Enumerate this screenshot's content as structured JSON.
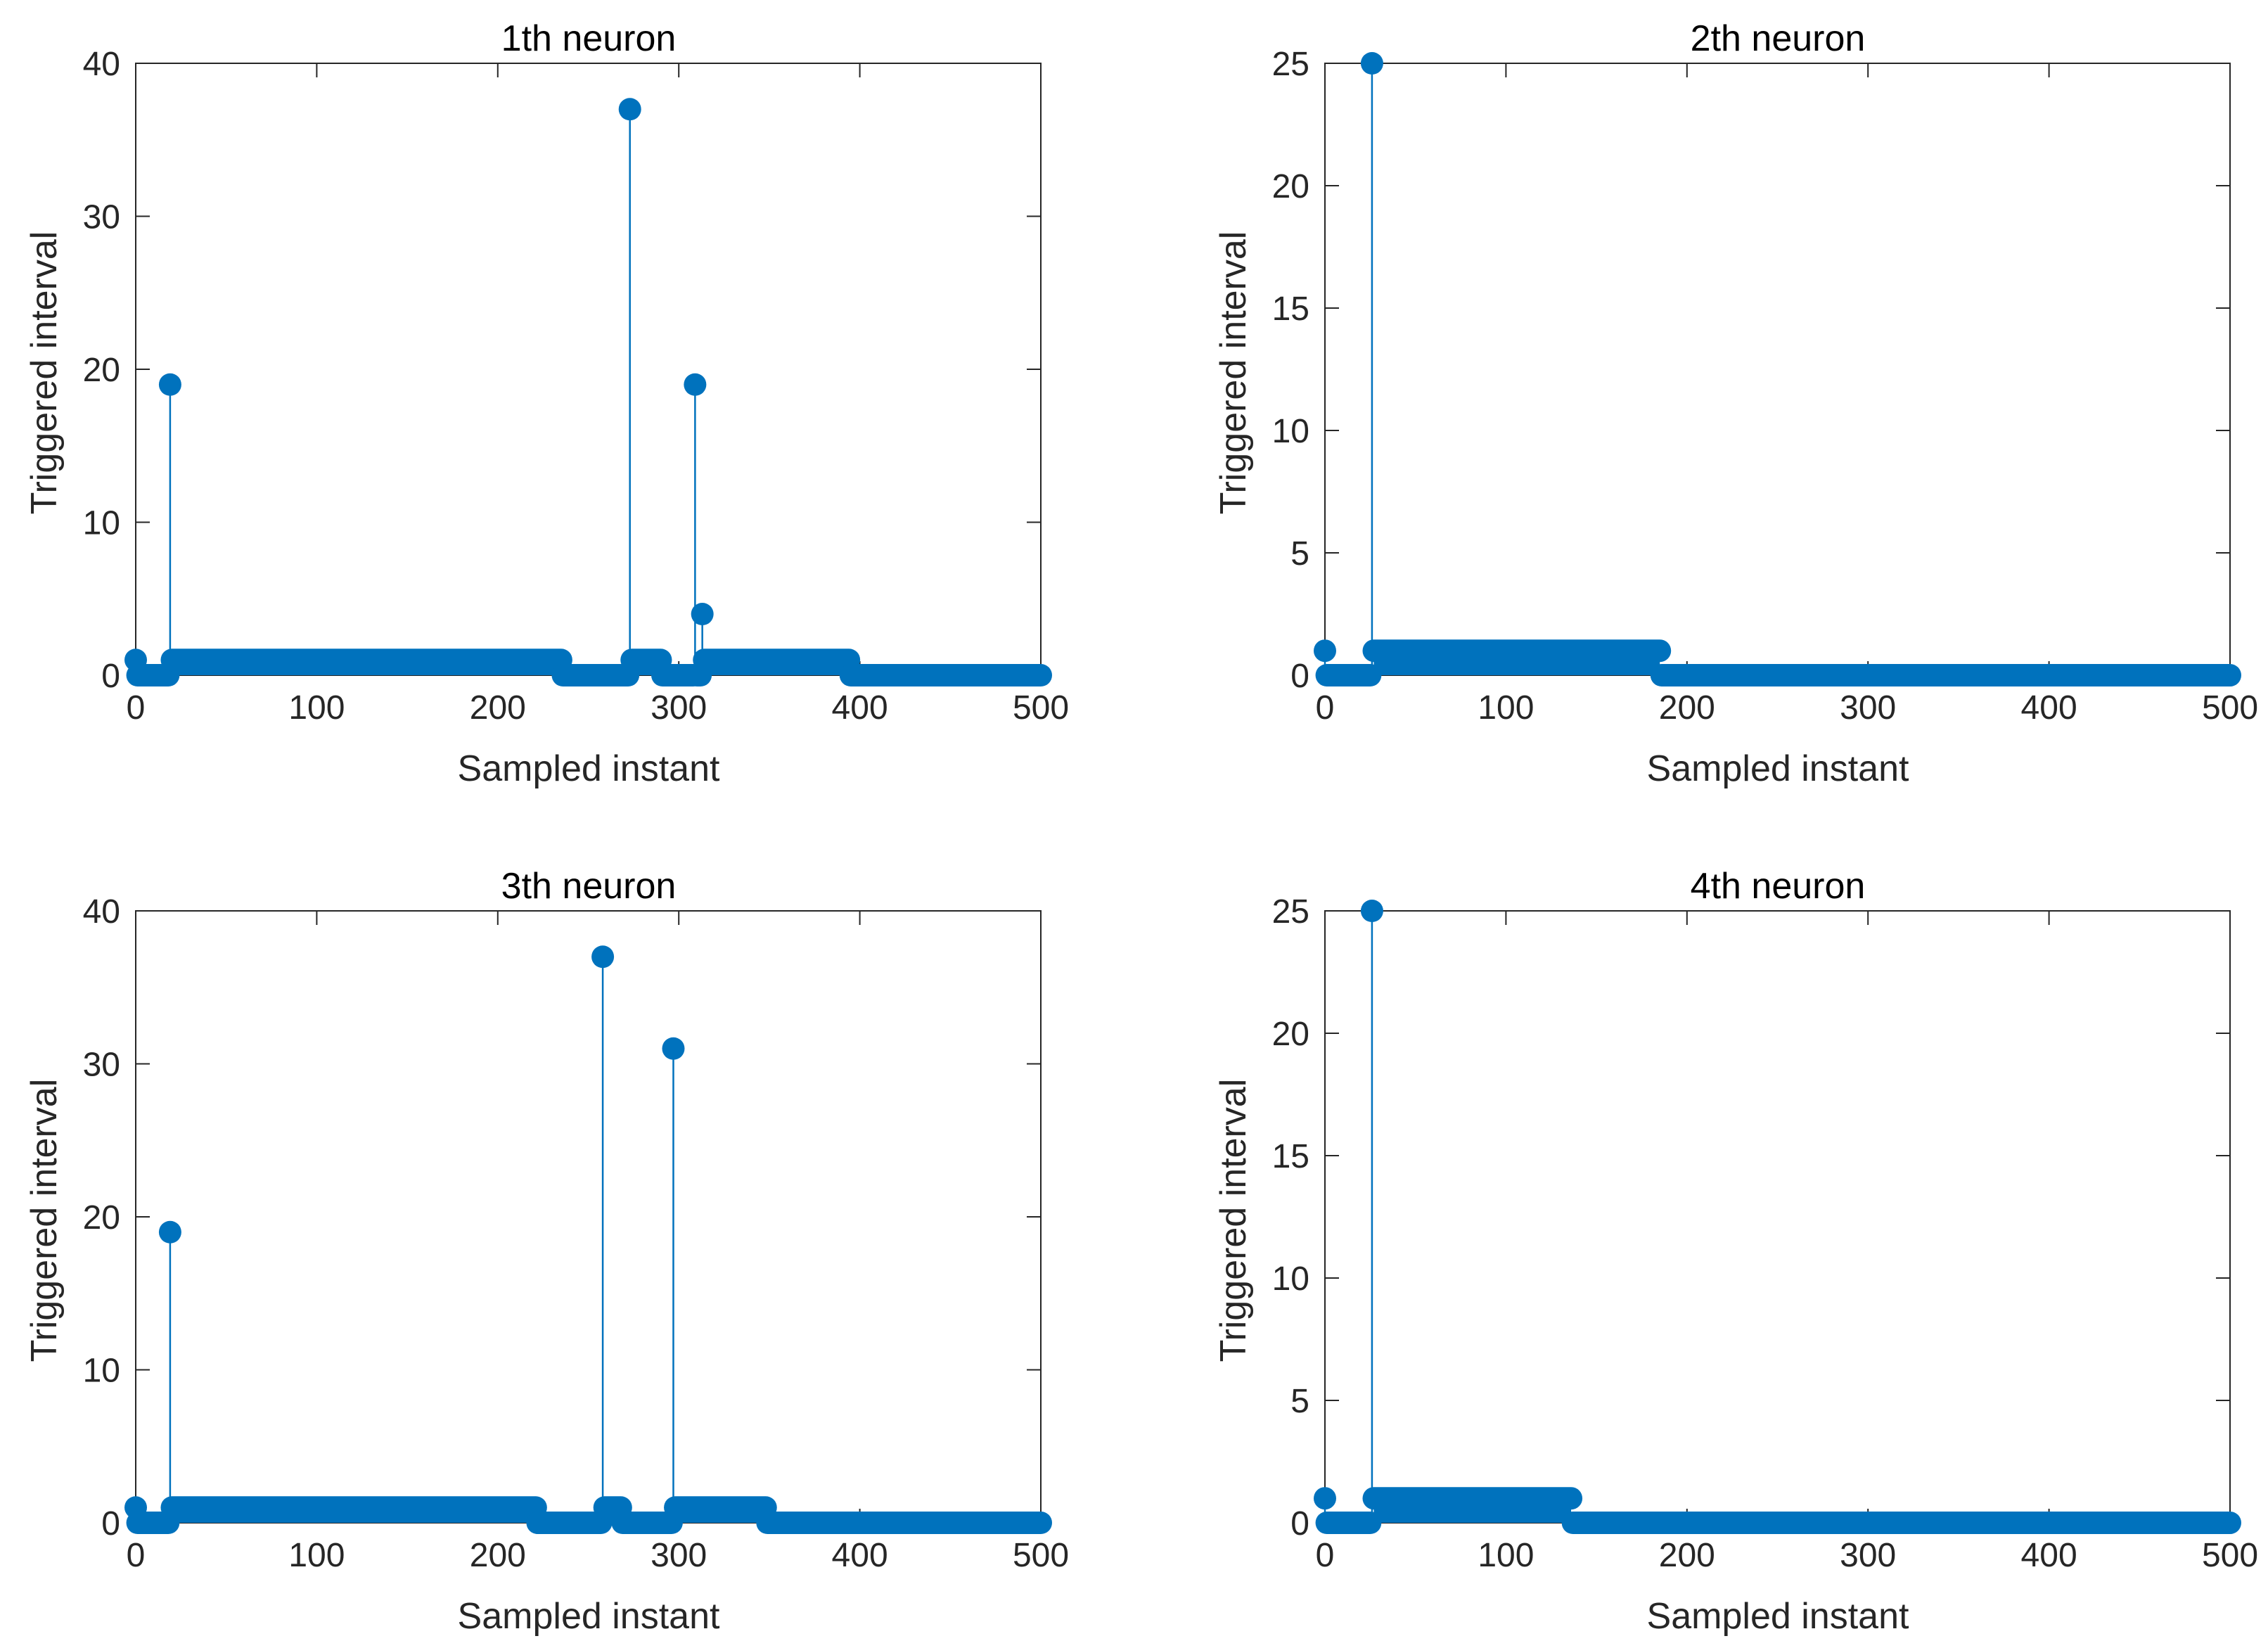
{
  "chart_data": [
    {
      "type": "stem",
      "title": "1th neuron",
      "xlabel": "Sampled instant",
      "ylabel": "Triggered interval",
      "xlim": [
        0,
        500
      ],
      "ylim": [
        0,
        40
      ],
      "xticks": [
        0,
        100,
        200,
        300,
        400,
        500
      ],
      "yticks": [
        0,
        10,
        20,
        30,
        40
      ],
      "color": "#0072BD",
      "spikes": [
        {
          "x": 0,
          "y": 1
        },
        {
          "x": 19,
          "y": 19
        },
        {
          "x": 273,
          "y": 37
        },
        {
          "x": 309,
          "y": 19
        },
        {
          "x": 313,
          "y": 4
        }
      ],
      "runs": [
        {
          "from": 1,
          "to": 18,
          "y": 0
        },
        {
          "from": 20,
          "to": 235,
          "y": 1
        },
        {
          "from": 236,
          "to": 272,
          "y": 0
        },
        {
          "from": 274,
          "to": 290,
          "y": 1
        },
        {
          "from": 291,
          "to": 308,
          "y": 0
        },
        {
          "from": 310,
          "to": 312,
          "y": 0
        },
        {
          "from": 314,
          "to": 394,
          "y": 1
        },
        {
          "from": 395,
          "to": 500,
          "y": 0
        }
      ]
    },
    {
      "type": "stem",
      "title": "2th neuron",
      "xlabel": "Sampled instant",
      "ylabel": "Triggered interval",
      "xlim": [
        0,
        500
      ],
      "ylim": [
        0,
        25
      ],
      "xticks": [
        0,
        100,
        200,
        300,
        400,
        500
      ],
      "yticks": [
        0,
        5,
        10,
        15,
        20,
        25
      ],
      "color": "#0072BD",
      "spikes": [
        {
          "x": 0,
          "y": 1
        },
        {
          "x": 26,
          "y": 25
        }
      ],
      "runs": [
        {
          "from": 1,
          "to": 25,
          "y": 0
        },
        {
          "from": 27,
          "to": 185,
          "y": 1
        },
        {
          "from": 186,
          "to": 500,
          "y": 0
        }
      ]
    },
    {
      "type": "stem",
      "title": "3th neuron",
      "xlabel": "Sampled instant",
      "ylabel": "Triggered interval",
      "xlim": [
        0,
        500
      ],
      "ylim": [
        0,
        40
      ],
      "xticks": [
        0,
        100,
        200,
        300,
        400,
        500
      ],
      "yticks": [
        0,
        10,
        20,
        30,
        40
      ],
      "color": "#0072BD",
      "spikes": [
        {
          "x": 0,
          "y": 1
        },
        {
          "x": 19,
          "y": 19
        },
        {
          "x": 258,
          "y": 37
        },
        {
          "x": 297,
          "y": 31
        }
      ],
      "runs": [
        {
          "from": 1,
          "to": 18,
          "y": 0
        },
        {
          "from": 20,
          "to": 221,
          "y": 1
        },
        {
          "from": 222,
          "to": 257,
          "y": 0
        },
        {
          "from": 259,
          "to": 268,
          "y": 1
        },
        {
          "from": 269,
          "to": 296,
          "y": 0
        },
        {
          "from": 298,
          "to": 348,
          "y": 1
        },
        {
          "from": 349,
          "to": 500,
          "y": 0
        }
      ]
    },
    {
      "type": "stem",
      "title": "4th neuron",
      "xlabel": "Sampled instant",
      "ylabel": "Triggered interval",
      "xlim": [
        0,
        500
      ],
      "ylim": [
        0,
        25
      ],
      "xticks": [
        0,
        100,
        200,
        300,
        400,
        500
      ],
      "yticks": [
        0,
        5,
        10,
        15,
        20,
        25
      ],
      "color": "#0072BD",
      "spikes": [
        {
          "x": 0,
          "y": 1
        },
        {
          "x": 26,
          "y": 25
        }
      ],
      "runs": [
        {
          "from": 1,
          "to": 25,
          "y": 0
        },
        {
          "from": 27,
          "to": 136,
          "y": 1
        },
        {
          "from": 137,
          "to": 500,
          "y": 0
        }
      ]
    }
  ]
}
